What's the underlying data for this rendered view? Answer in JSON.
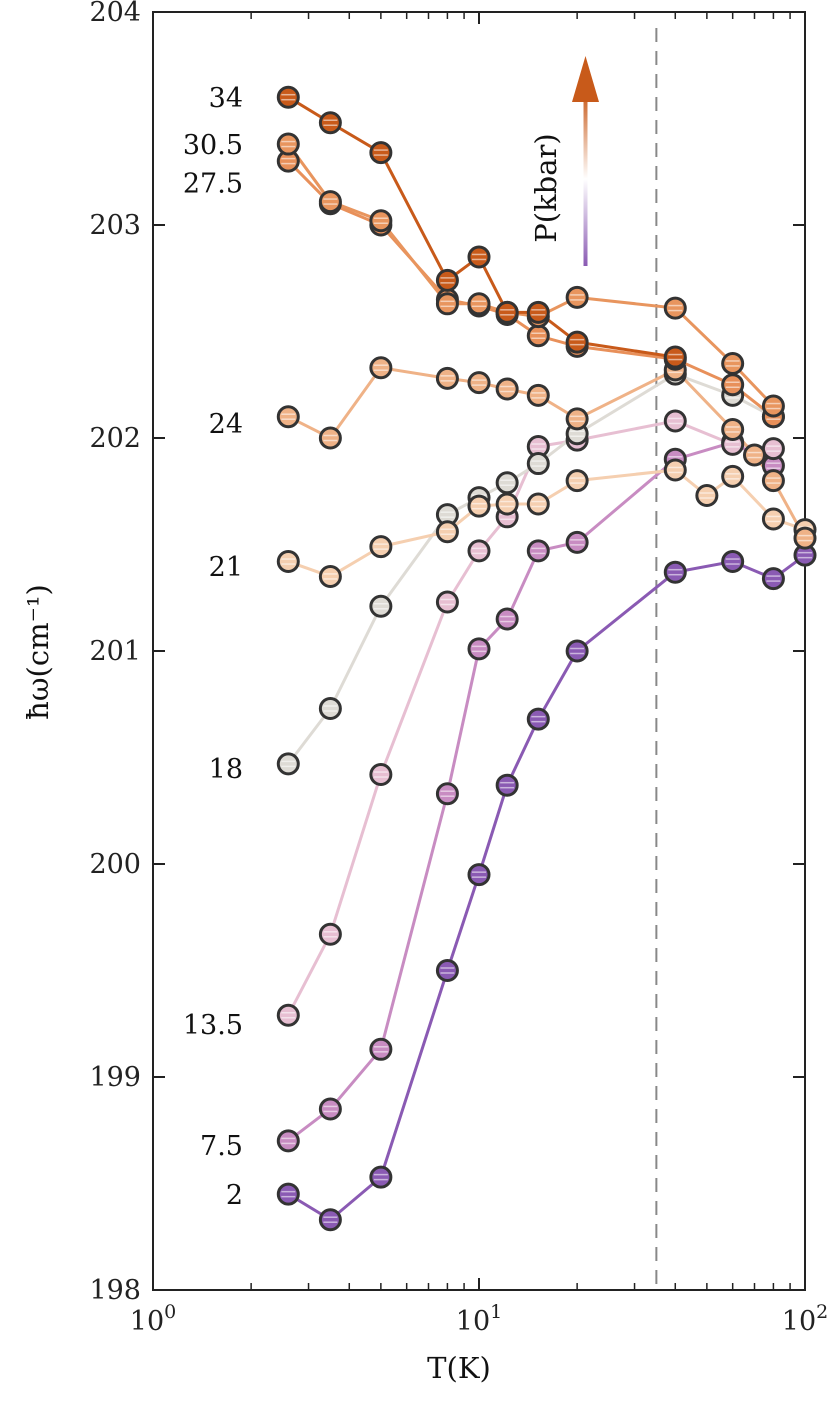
{
  "chart_data": {
    "type": "scatter",
    "title": "",
    "xlabel": "T(K)",
    "ylabel": "ħω(cm⁻¹)",
    "xscale": "log",
    "xlim": [
      1,
      100
    ],
    "ylim": [
      198,
      204
    ],
    "x_ticks": [
      {
        "value": 1,
        "base": "10",
        "exp": "0"
      },
      {
        "value": 10,
        "base": "10",
        "exp": "1"
      },
      {
        "value": 100,
        "base": "10",
        "exp": "2"
      }
    ],
    "y_ticks": [
      "198",
      "199",
      "200",
      "201",
      "202",
      "203",
      "204"
    ],
    "dashed_vline_x": 35,
    "grid": false,
    "legend": "inline labels at left",
    "pressure_arrow": {
      "label": "P(kbar)",
      "colors": [
        "#8a5ab3",
        "#ffffff",
        "#c85a1a"
      ]
    },
    "series": [
      {
        "name": "2",
        "color": "#8a5ab3",
        "points": [
          [
            2.6,
            198.45
          ],
          [
            3.5,
            198.33
          ],
          [
            5,
            198.53
          ],
          [
            8,
            199.5
          ],
          [
            10,
            199.95
          ],
          [
            12.2,
            200.37
          ],
          [
            15.2,
            200.68
          ],
          [
            20,
            201.0
          ],
          [
            40,
            201.37
          ],
          [
            60,
            201.42
          ],
          [
            80,
            201.34
          ],
          [
            100,
            201.45
          ]
        ]
      },
      {
        "name": "7.5",
        "color": "#c88cc2",
        "points": [
          [
            2.6,
            198.7
          ],
          [
            3.5,
            198.85
          ],
          [
            5,
            199.13
          ],
          [
            8,
            200.33
          ],
          [
            10,
            201.01
          ],
          [
            12.2,
            201.15
          ],
          [
            15.2,
            201.47
          ],
          [
            20,
            201.51
          ],
          [
            40,
            201.9
          ],
          [
            60,
            201.98
          ],
          [
            80,
            201.87
          ]
        ]
      },
      {
        "name": "13.5",
        "color": "#e7bfd2",
        "points": [
          [
            2.6,
            199.29
          ],
          [
            3.5,
            199.67
          ],
          [
            5,
            200.42
          ],
          [
            8,
            201.23
          ],
          [
            10,
            201.47
          ],
          [
            12.2,
            201.63
          ],
          [
            15.2,
            201.96
          ],
          [
            20,
            201.99
          ],
          [
            40,
            202.08
          ],
          [
            60,
            201.97
          ],
          [
            80,
            201.95
          ]
        ]
      },
      {
        "name": "18",
        "color": "#dedbd5",
        "points": [
          [
            2.6,
            200.47
          ],
          [
            3.5,
            200.73
          ],
          [
            5,
            201.21
          ],
          [
            8,
            201.64
          ],
          [
            10,
            201.72
          ],
          [
            12.2,
            201.79
          ],
          [
            15.2,
            201.88
          ],
          [
            20,
            202.02
          ],
          [
            40,
            202.3
          ],
          [
            60,
            202.2
          ],
          [
            80,
            202.1
          ]
        ]
      },
      {
        "name": "21",
        "color": "#f5cfb0",
        "points": [
          [
            2.6,
            201.42
          ],
          [
            3.5,
            201.35
          ],
          [
            5,
            201.49
          ],
          [
            8,
            201.56
          ],
          [
            10,
            201.68
          ],
          [
            12.2,
            201.69
          ],
          [
            15.2,
            201.69
          ],
          [
            20,
            201.8
          ],
          [
            40,
            201.85
          ],
          [
            50,
            201.73
          ],
          [
            60,
            201.82
          ],
          [
            80,
            201.62
          ],
          [
            100,
            201.57
          ]
        ]
      },
      {
        "name": "24",
        "color": "#efb287",
        "points": [
          [
            2.6,
            202.1
          ],
          [
            3.5,
            202.0
          ],
          [
            5,
            202.33
          ],
          [
            8,
            202.28
          ],
          [
            10,
            202.26
          ],
          [
            12.2,
            202.23
          ],
          [
            15.2,
            202.2
          ],
          [
            20,
            202.09
          ],
          [
            40,
            202.32
          ],
          [
            60,
            202.04
          ],
          [
            70,
            201.92
          ],
          [
            80,
            201.8
          ],
          [
            100,
            201.53
          ]
        ]
      },
      {
        "name": "27.5",
        "color": "#e8905a",
        "points": [
          [
            2.6,
            203.3
          ],
          [
            3.5,
            203.1
          ],
          [
            5,
            203.0
          ],
          [
            8,
            202.65
          ],
          [
            10,
            202.62
          ],
          [
            12.2,
            202.58
          ],
          [
            15.2,
            202.48
          ],
          [
            20,
            202.43
          ],
          [
            40,
            202.37
          ],
          [
            60,
            202.25
          ],
          [
            80,
            202.1
          ]
        ]
      },
      {
        "name": "30.5",
        "color": "#e8955e",
        "points": [
          [
            2.6,
            203.38
          ],
          [
            3.5,
            203.11
          ],
          [
            5,
            203.02
          ],
          [
            8,
            202.63
          ],
          [
            10,
            202.63
          ],
          [
            12.2,
            202.59
          ],
          [
            15.2,
            202.57
          ],
          [
            20,
            202.66
          ],
          [
            40,
            202.61
          ],
          [
            60,
            202.35
          ],
          [
            80,
            202.15
          ]
        ]
      },
      {
        "name": "34",
        "color": "#c85a1a",
        "points": [
          [
            2.6,
            203.6
          ],
          [
            3.5,
            203.48
          ],
          [
            5,
            203.34
          ],
          [
            8,
            202.74
          ],
          [
            10,
            202.85
          ],
          [
            12.2,
            202.59
          ],
          [
            15.2,
            202.59
          ],
          [
            20,
            202.45
          ],
          [
            40,
            202.38
          ]
        ]
      }
    ],
    "series_labels": [
      "34",
      "30.5",
      "27.5",
      "24",
      "21",
      "18",
      "13.5",
      "7.5",
      "2"
    ]
  }
}
